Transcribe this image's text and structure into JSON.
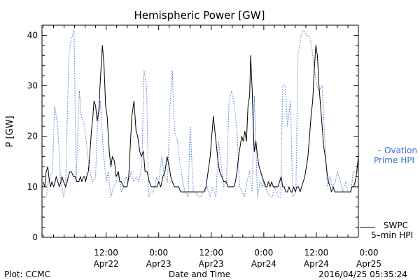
{
  "chart_data": {
    "type": "line",
    "title": "Hemispheric Power [GW]",
    "xlabel": "Date and Time",
    "ylabel": "P [GW]",
    "ylim": [
      0,
      42
    ],
    "xlim": [
      -0.2,
      60.0
    ],
    "y_ticks": [
      0,
      10,
      20,
      30,
      40
    ],
    "x_tick_labels": [
      {
        "h": 12,
        "line1": "12:00",
        "line2": "Apr22"
      },
      {
        "h": 22,
        "line1": "0:00",
        "line2": "Apr23"
      },
      {
        "h": 32,
        "line1": "12:00",
        "line2": "Apr23"
      },
      {
        "h": 42,
        "line1": "0:00",
        "line2": "Apr24"
      },
      {
        "h": 52,
        "line1": "12:00",
        "line2": "Apr24"
      },
      {
        "h": 62,
        "line1": "0:00",
        "line2": "Apr25"
      }
    ],
    "footer_left": "Plot: CCMC",
    "footer_right": "2016/04/25 05:35:24",
    "series": [
      {
        "name_line1": "– Ovation",
        "name_line2": "Prime HPI",
        "color": "#3a6fd8",
        "style": "dotted",
        "x": [
          0.0,
          0.6,
          1.0,
          1.8,
          2.2,
          2.8,
          3.3,
          3.9,
          4.3,
          4.9,
          5.3,
          5.9,
          6.3,
          6.9,
          7.3,
          7.9,
          8.4,
          8.9,
          9.4,
          10.0,
          10.3,
          10.9,
          11.4,
          12.0,
          12.4,
          12.9,
          13.4,
          13.9,
          14.4,
          14.9,
          15.3,
          15.8,
          16.2,
          16.8,
          17.2,
          17.8,
          18.2,
          18.8,
          19.2,
          19.7,
          20.1,
          20.6,
          21.0,
          21.6,
          22.0,
          22.6,
          23.1,
          23.7,
          24.1,
          24.6,
          25.0,
          25.6,
          26.0,
          26.6,
          27.0,
          27.6,
          28.0,
          28.6,
          29.0,
          29.5,
          30.0,
          30.5,
          30.8,
          31.2,
          31.8,
          32.2,
          32.9,
          33.4,
          33.8,
          34.4,
          34.9,
          35.4,
          35.9,
          36.4,
          36.9,
          37.4,
          37.9,
          38.3,
          38.8,
          39.3,
          39.8,
          40.2,
          40.8,
          41.3,
          41.7,
          42.2,
          42.6,
          43.2,
          43.6,
          44.1,
          44.6,
          45.2,
          45.6,
          46.1,
          46.5,
          47.1,
          47.5,
          48.1,
          48.5,
          49.1,
          49.5,
          50.1,
          50.5,
          51.1,
          51.5,
          52.1,
          52.5,
          53.1,
          53.5,
          54.1,
          54.6,
          55.0,
          55.6,
          56.0,
          56.6,
          57.0,
          57.6,
          58.0,
          58.6,
          59.0,
          59.6,
          60.0
        ],
        "y": [
          8,
          8,
          11,
          13,
          26,
          22,
          12,
          8,
          10,
          36,
          39,
          41,
          11,
          29,
          24,
          22,
          17,
          13,
          11,
          12,
          21,
          27,
          18,
          11,
          13,
          8,
          10,
          11,
          13,
          9,
          10,
          12,
          11,
          13,
          11,
          12,
          11,
          14,
          33,
          30,
          8,
          9,
          9,
          12,
          11,
          16,
          12,
          11,
          25,
          33,
          21,
          19,
          15,
          11,
          9,
          8,
          22,
          9,
          9,
          8,
          8,
          9,
          9,
          10,
          8,
          10,
          8,
          19,
          15,
          10,
          11,
          27,
          29,
          26,
          21,
          10,
          9,
          8,
          11,
          13,
          9,
          28,
          8,
          11,
          10,
          11,
          9,
          8,
          8,
          10,
          8,
          8,
          30,
          30,
          22,
          27,
          8,
          9,
          36,
          40,
          41,
          40,
          40,
          38,
          34,
          30,
          29,
          30,
          22,
          10,
          12,
          10,
          11,
          13,
          11,
          9,
          11,
          9,
          9,
          13,
          13,
          13
        ]
      },
      {
        "name_line1": "SWPC",
        "name_line2": "5–min HPI",
        "color": "#000000",
        "style": "solid",
        "x": [
          0.0,
          0.3,
          0.6,
          0.9,
          1.1,
          1.4,
          1.7,
          2.0,
          2.3,
          2.5,
          2.8,
          3.1,
          3.4,
          3.6,
          3.9,
          4.3,
          4.6,
          4.8,
          5.1,
          5.4,
          5.8,
          6.1,
          6.4,
          6.8,
          7.1,
          7.4,
          7.7,
          7.9,
          8.1,
          8.3,
          8.6,
          8.8,
          9.0,
          9.2,
          9.5,
          9.7,
          10.0,
          10.3,
          10.6,
          10.9,
          11.3,
          11.6,
          11.9,
          12.2,
          12.6,
          12.9,
          13.2,
          13.6,
          13.9,
          14.3,
          14.6,
          14.9,
          15.3,
          15.6,
          16.0,
          16.3,
          16.6,
          16.9,
          17.3,
          17.7,
          18.0,
          18.4,
          18.7,
          19.1,
          19.4,
          19.8,
          20.2,
          20.6,
          20.9,
          21.3,
          21.7,
          22.0,
          22.4,
          22.8,
          23.2,
          23.6,
          24.0,
          24.3,
          24.6,
          25.0,
          25.4,
          25.8,
          26.2,
          26.6,
          27.0,
          27.4,
          27.8,
          28.2,
          28.6,
          29.0,
          29.4,
          29.8,
          30.2,
          30.6,
          31.0,
          31.4,
          31.8,
          32.1,
          32.4,
          32.7,
          33.0,
          33.3,
          33.6,
          34.0,
          34.4,
          34.8,
          35.2,
          35.6,
          36.0,
          36.3,
          36.6,
          36.9,
          37.2,
          37.5,
          37.8,
          38.1,
          38.4,
          38.7,
          39.0,
          39.3,
          39.5,
          39.8,
          40.0,
          40.2,
          40.5,
          40.8,
          41.1,
          41.4,
          41.7,
          42.0,
          42.3,
          42.6,
          42.9,
          43.2,
          43.5,
          43.8,
          44.1,
          44.4,
          44.7,
          45.0,
          45.3,
          45.6,
          45.9,
          46.2,
          46.5,
          46.8,
          47.1,
          47.4,
          47.7,
          48.0,
          48.3,
          48.6,
          48.9,
          49.2,
          49.5,
          49.8,
          50.1,
          50.4,
          50.7,
          51.0,
          51.3,
          51.6,
          51.9,
          52.2,
          52.5,
          52.8,
          53.1,
          53.4,
          53.7,
          54.0,
          54.3,
          54.6,
          54.9,
          55.2,
          55.5,
          55.8,
          56.1,
          56.4,
          56.7,
          57.0,
          57.3,
          57.6,
          57.9,
          58.2,
          58.5,
          58.8,
          59.1,
          59.4,
          59.7,
          60.0
        ],
        "y": [
          11,
          10,
          13,
          14,
          12,
          10,
          11,
          10,
          11,
          12,
          11,
          10,
          11,
          12,
          11,
          10,
          11,
          12,
          13,
          13,
          12,
          12,
          11,
          11,
          12,
          11,
          12,
          12,
          11,
          12,
          13,
          15,
          18,
          21,
          24,
          27,
          26,
          23,
          25,
          31,
          38,
          34,
          26,
          24,
          17,
          14,
          16,
          15,
          12,
          13,
          11,
          11,
          10,
          10,
          10,
          12,
          18,
          24,
          27,
          21,
          20,
          17,
          16,
          17,
          13,
          13,
          11,
          10,
          10,
          10,
          10,
          11,
          10,
          12,
          13,
          16,
          14,
          12,
          11,
          10,
          10,
          10,
          9,
          9,
          9,
          9,
          9,
          9,
          9,
          9,
          9,
          9,
          9,
          9,
          10,
          13,
          16,
          20,
          24,
          21,
          18,
          15,
          13,
          12,
          11,
          11,
          10,
          10,
          10,
          10,
          11,
          13,
          16,
          18,
          20,
          19,
          21,
          19,
          26,
          28,
          36,
          29,
          22,
          17,
          19,
          16,
          14,
          13,
          12,
          11,
          10,
          10,
          11,
          10,
          11,
          10,
          10,
          10,
          10,
          11,
          12,
          10,
          10,
          9,
          9,
          10,
          9,
          9,
          10,
          9,
          10,
          10,
          9,
          10,
          11,
          12,
          14,
          16,
          20,
          24,
          27,
          33,
          38,
          36,
          30,
          26,
          22,
          18,
          16,
          13,
          11,
          10,
          9,
          10,
          9,
          9,
          9,
          9,
          9,
          9,
          9,
          9,
          9,
          9,
          9,
          10,
          10,
          11,
          13,
          16
        ]
      }
    ]
  }
}
